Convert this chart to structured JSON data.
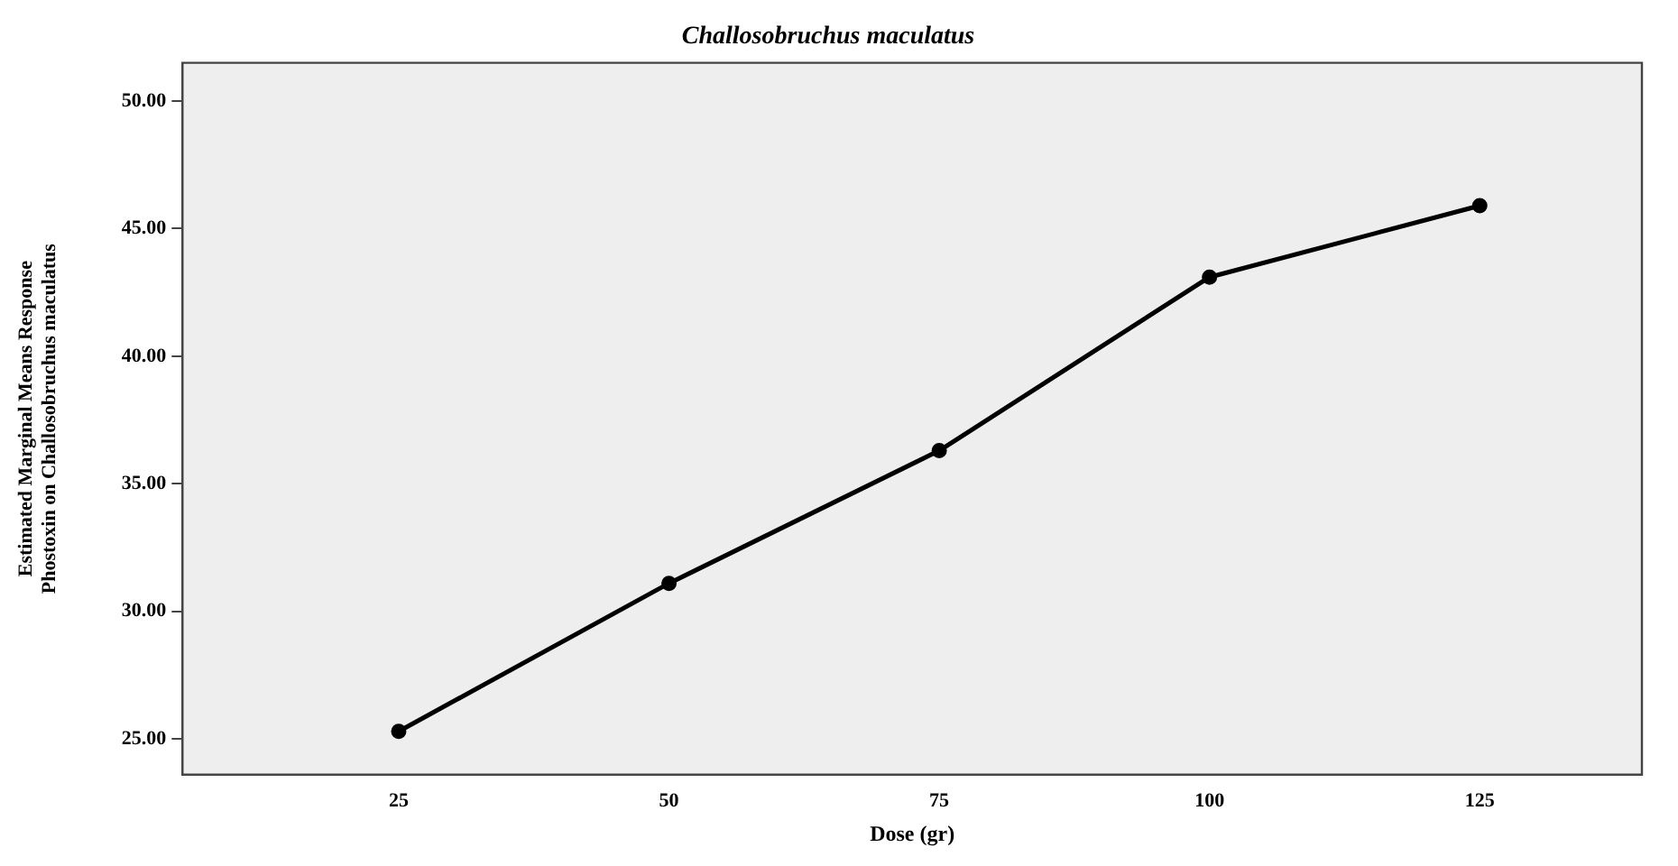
{
  "chart_data": {
    "type": "line",
    "title": "Challosobruchus maculatus",
    "xlabel": "Dose (gr)",
    "ylabel": "Estimated Marginal Means Response Phostoxin on Challosobruchus maculatus",
    "x": [
      25,
      50,
      75,
      100,
      125
    ],
    "series": [
      {
        "color": "#000000",
        "values": [
          25.3,
          31.1,
          36.3,
          43.1,
          45.9
        ]
      }
    ],
    "xlim": [
      5,
      140
    ],
    "xticks": [
      25,
      50,
      75,
      100,
      125
    ],
    "ylim": [
      23.6,
      51.5
    ],
    "yticks": [
      {
        "value": 25,
        "label": "25.00"
      },
      {
        "value": 30,
        "label": "30.00"
      },
      {
        "value": 35,
        "label": "35.00"
      },
      {
        "value": 40,
        "label": "40.00"
      },
      {
        "value": 45,
        "label": "45.00"
      },
      {
        "value": 50,
        "label": "50.00"
      }
    ],
    "grid": false,
    "legend": false,
    "marker": "circle",
    "line_style": "solid"
  }
}
